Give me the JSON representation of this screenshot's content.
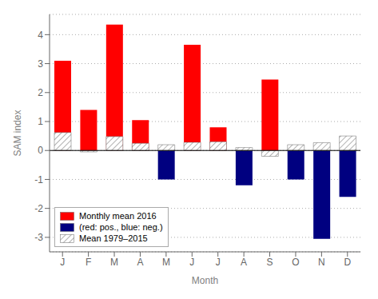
{
  "chart_data": {
    "type": "bar",
    "xlabel": "Month",
    "ylabel": "SAM index",
    "categories": [
      "J",
      "F",
      "M",
      "A",
      "M",
      "J",
      "J",
      "A",
      "S",
      "O",
      "N",
      "D"
    ],
    "series": [
      {
        "name": "Monthly mean 2016",
        "values": [
          3.1,
          1.4,
          4.35,
          1.05,
          -1.0,
          3.65,
          0.8,
          -1.2,
          2.45,
          -1.0,
          -3.05,
          -1.6
        ],
        "colors": [
          "#ff0000",
          "#ff0000",
          "#ff0000",
          "#ff0000",
          "#000080",
          "#ff0000",
          "#ff0000",
          "#000080",
          "#ff0000",
          "#000080",
          "#000080",
          "#000080"
        ]
      },
      {
        "name": "Mean 1979–2015",
        "values": [
          0.62,
          -0.05,
          0.48,
          0.25,
          0.2,
          0.28,
          0.3,
          0.1,
          -0.2,
          0.2,
          0.27,
          0.5
        ],
        "color": "#666666"
      }
    ],
    "annotations": [
      "(red: pos., blue: neg.)"
    ],
    "ylim": [
      -3.5,
      4.7
    ],
    "yticks": [
      -3,
      -2,
      -1,
      0,
      1,
      2,
      3,
      4
    ],
    "grid": true,
    "legend": "lower left"
  }
}
